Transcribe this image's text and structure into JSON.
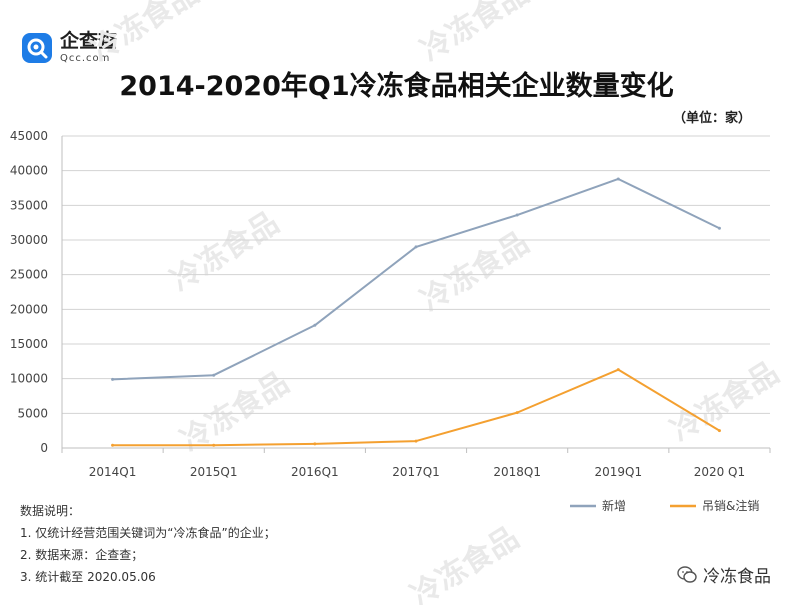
{
  "brand": {
    "name_cn": "企查查",
    "name_en": "Qcc.com"
  },
  "unit_label": "（单位：家）",
  "notes": {
    "heading": "数据说明：",
    "items": [
      "1. 仅统计经营范围关键词为“冷冻食品”的企业；",
      "2. 数据来源：企查查；",
      "3. 统计截至 2020.05.06"
    ]
  },
  "watermark": {
    "text": "冷冻食品"
  },
  "colors": {
    "new": "#8fa3bb",
    "revoked": "#f4a030",
    "grid": "#d3d3d3",
    "axis": "#bfbfbf"
  },
  "chart_data": {
    "type": "line",
    "title": "2014-2020年Q1冷冻食品相关企业数量变化",
    "categories": [
      "2014Q1",
      "2015Q1",
      "2016Q1",
      "2017Q1",
      "2018Q1",
      "2019Q1",
      "2020 Q1"
    ],
    "series": [
      {
        "name": "新增",
        "values": [
          9900,
          10500,
          17700,
          29000,
          33600,
          38800,
          31700
        ]
      },
      {
        "name": "吊销&注销",
        "values": [
          400,
          400,
          600,
          1000,
          5100,
          11300,
          2500
        ]
      }
    ],
    "ylim": [
      0,
      45000
    ],
    "yticks": [
      0,
      5000,
      10000,
      15000,
      20000,
      25000,
      30000,
      35000,
      40000,
      45000
    ],
    "grid": true,
    "legend_position": "bottom-right"
  }
}
